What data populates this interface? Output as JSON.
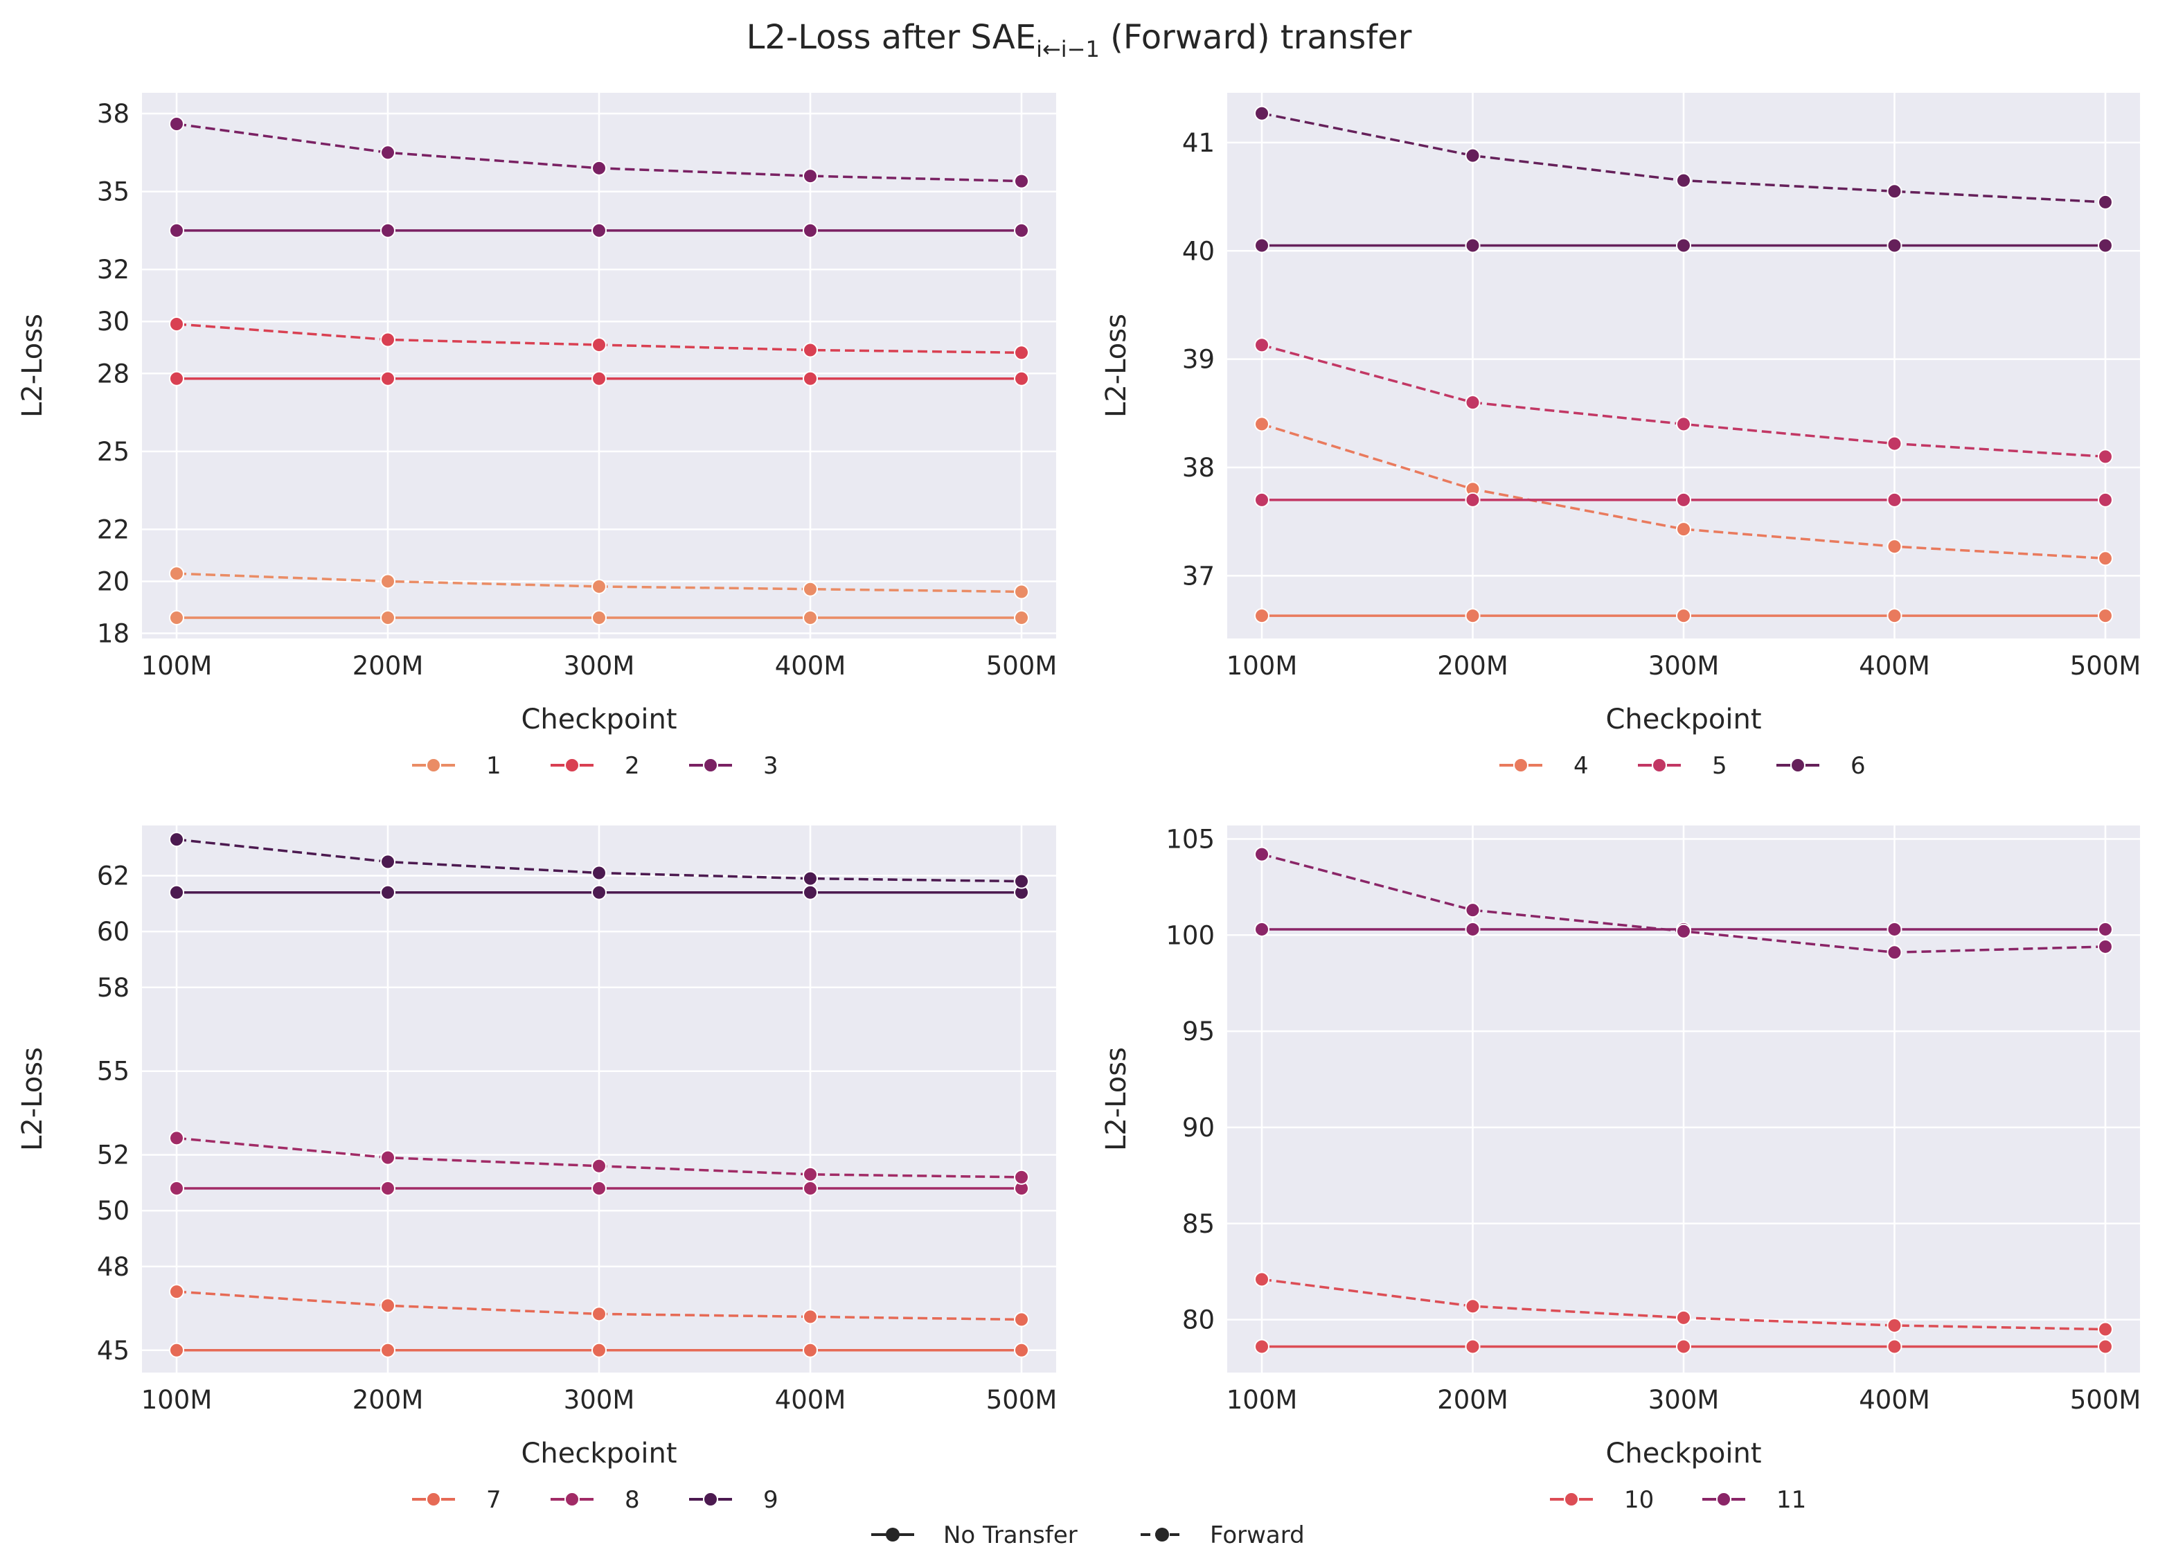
{
  "figure": {
    "title_main": "L2-Loss after SAE",
    "title_sub": "i←i−1",
    "title_rest": " (Forward) transfer"
  },
  "style_legend": {
    "solid_label": "No Transfer",
    "dashed_label": "Forward"
  },
  "chart_data": [
    {
      "type": "line",
      "x": [
        "100M",
        "200M",
        "300M",
        "400M",
        "500M"
      ],
      "xlabel": "Checkpoint",
      "ylabel": "L2-Loss",
      "ylim": [
        17.8,
        38.8
      ],
      "yticks": [
        18,
        20,
        22,
        25,
        28,
        30,
        32,
        35,
        38
      ],
      "grid": true,
      "legend": "below",
      "series": [
        {
          "name": "1",
          "color": "#ea8c65",
          "no_transfer": [
            18.6,
            18.6,
            18.6,
            18.6,
            18.6
          ],
          "forward": [
            20.3,
            20.0,
            19.8,
            19.7,
            19.6
          ]
        },
        {
          "name": "2",
          "color": "#d94052",
          "no_transfer": [
            27.8,
            27.8,
            27.8,
            27.8,
            27.8
          ],
          "forward": [
            29.9,
            29.3,
            29.1,
            28.9,
            28.8
          ]
        },
        {
          "name": "3",
          "color": "#7a2163",
          "no_transfer": [
            33.5,
            33.5,
            33.5,
            33.5,
            33.5
          ],
          "forward": [
            37.6,
            36.5,
            35.9,
            35.6,
            35.4
          ]
        }
      ]
    },
    {
      "type": "line",
      "x": [
        "100M",
        "200M",
        "300M",
        "400M",
        "500M"
      ],
      "xlabel": "Checkpoint",
      "ylabel": "L2-Loss",
      "ylim": [
        36.42,
        41.46
      ],
      "yticks": [
        37,
        38,
        39,
        40,
        41
      ],
      "grid": true,
      "legend": "below",
      "series": [
        {
          "name": "4",
          "color": "#e97a5d",
          "no_transfer": [
            36.63,
            36.63,
            36.63,
            36.63,
            36.63
          ],
          "forward": [
            38.4,
            37.8,
            37.43,
            37.27,
            37.16
          ]
        },
        {
          "name": "5",
          "color": "#c23764",
          "no_transfer": [
            37.7,
            37.7,
            37.7,
            37.7,
            37.7
          ],
          "forward": [
            39.13,
            38.6,
            38.4,
            38.22,
            38.1
          ]
        },
        {
          "name": "6",
          "color": "#65205a",
          "no_transfer": [
            40.05,
            40.05,
            40.05,
            40.05,
            40.05
          ],
          "forward": [
            41.27,
            40.88,
            40.65,
            40.55,
            40.45
          ]
        }
      ]
    },
    {
      "type": "line",
      "x": [
        "100M",
        "200M",
        "300M",
        "400M",
        "500M"
      ],
      "xlabel": "Checkpoint",
      "ylabel": "L2-Loss",
      "ylim": [
        44.2,
        63.8
      ],
      "yticks": [
        45,
        48,
        50,
        52,
        55,
        58,
        60,
        62
      ],
      "grid": true,
      "legend": "below",
      "series": [
        {
          "name": "7",
          "color": "#e66a55",
          "no_transfer": [
            45.0,
            45.0,
            45.0,
            45.0,
            45.0
          ],
          "forward": [
            47.1,
            46.6,
            46.3,
            46.2,
            46.1
          ]
        },
        {
          "name": "8",
          "color": "#a12b66",
          "no_transfer": [
            50.8,
            50.8,
            50.8,
            50.8,
            50.8
          ],
          "forward": [
            52.6,
            51.9,
            51.6,
            51.3,
            51.2
          ]
        },
        {
          "name": "9",
          "color": "#4c1a50",
          "no_transfer": [
            61.4,
            61.4,
            61.4,
            61.4,
            61.4
          ],
          "forward": [
            63.3,
            62.5,
            62.1,
            61.9,
            61.8
          ]
        }
      ]
    },
    {
      "type": "line",
      "x": [
        "100M",
        "200M",
        "300M",
        "400M",
        "500M"
      ],
      "xlabel": "Checkpoint",
      "ylabel": "L2-Loss",
      "ylim": [
        77.25,
        105.7
      ],
      "yticks": [
        80,
        85,
        90,
        95,
        100,
        105
      ],
      "grid": true,
      "legend": "below",
      "series": [
        {
          "name": "10",
          "color": "#dc4d55",
          "no_transfer": [
            78.6,
            78.6,
            78.6,
            78.6,
            78.6
          ],
          "forward": [
            82.1,
            80.7,
            80.1,
            79.7,
            79.5
          ]
        },
        {
          "name": "11",
          "color": "#8a2567",
          "no_transfer": [
            100.3,
            100.3,
            100.3,
            100.3,
            100.3
          ],
          "forward": [
            104.2,
            101.3,
            100.2,
            99.1,
            99.4
          ]
        }
      ]
    }
  ]
}
